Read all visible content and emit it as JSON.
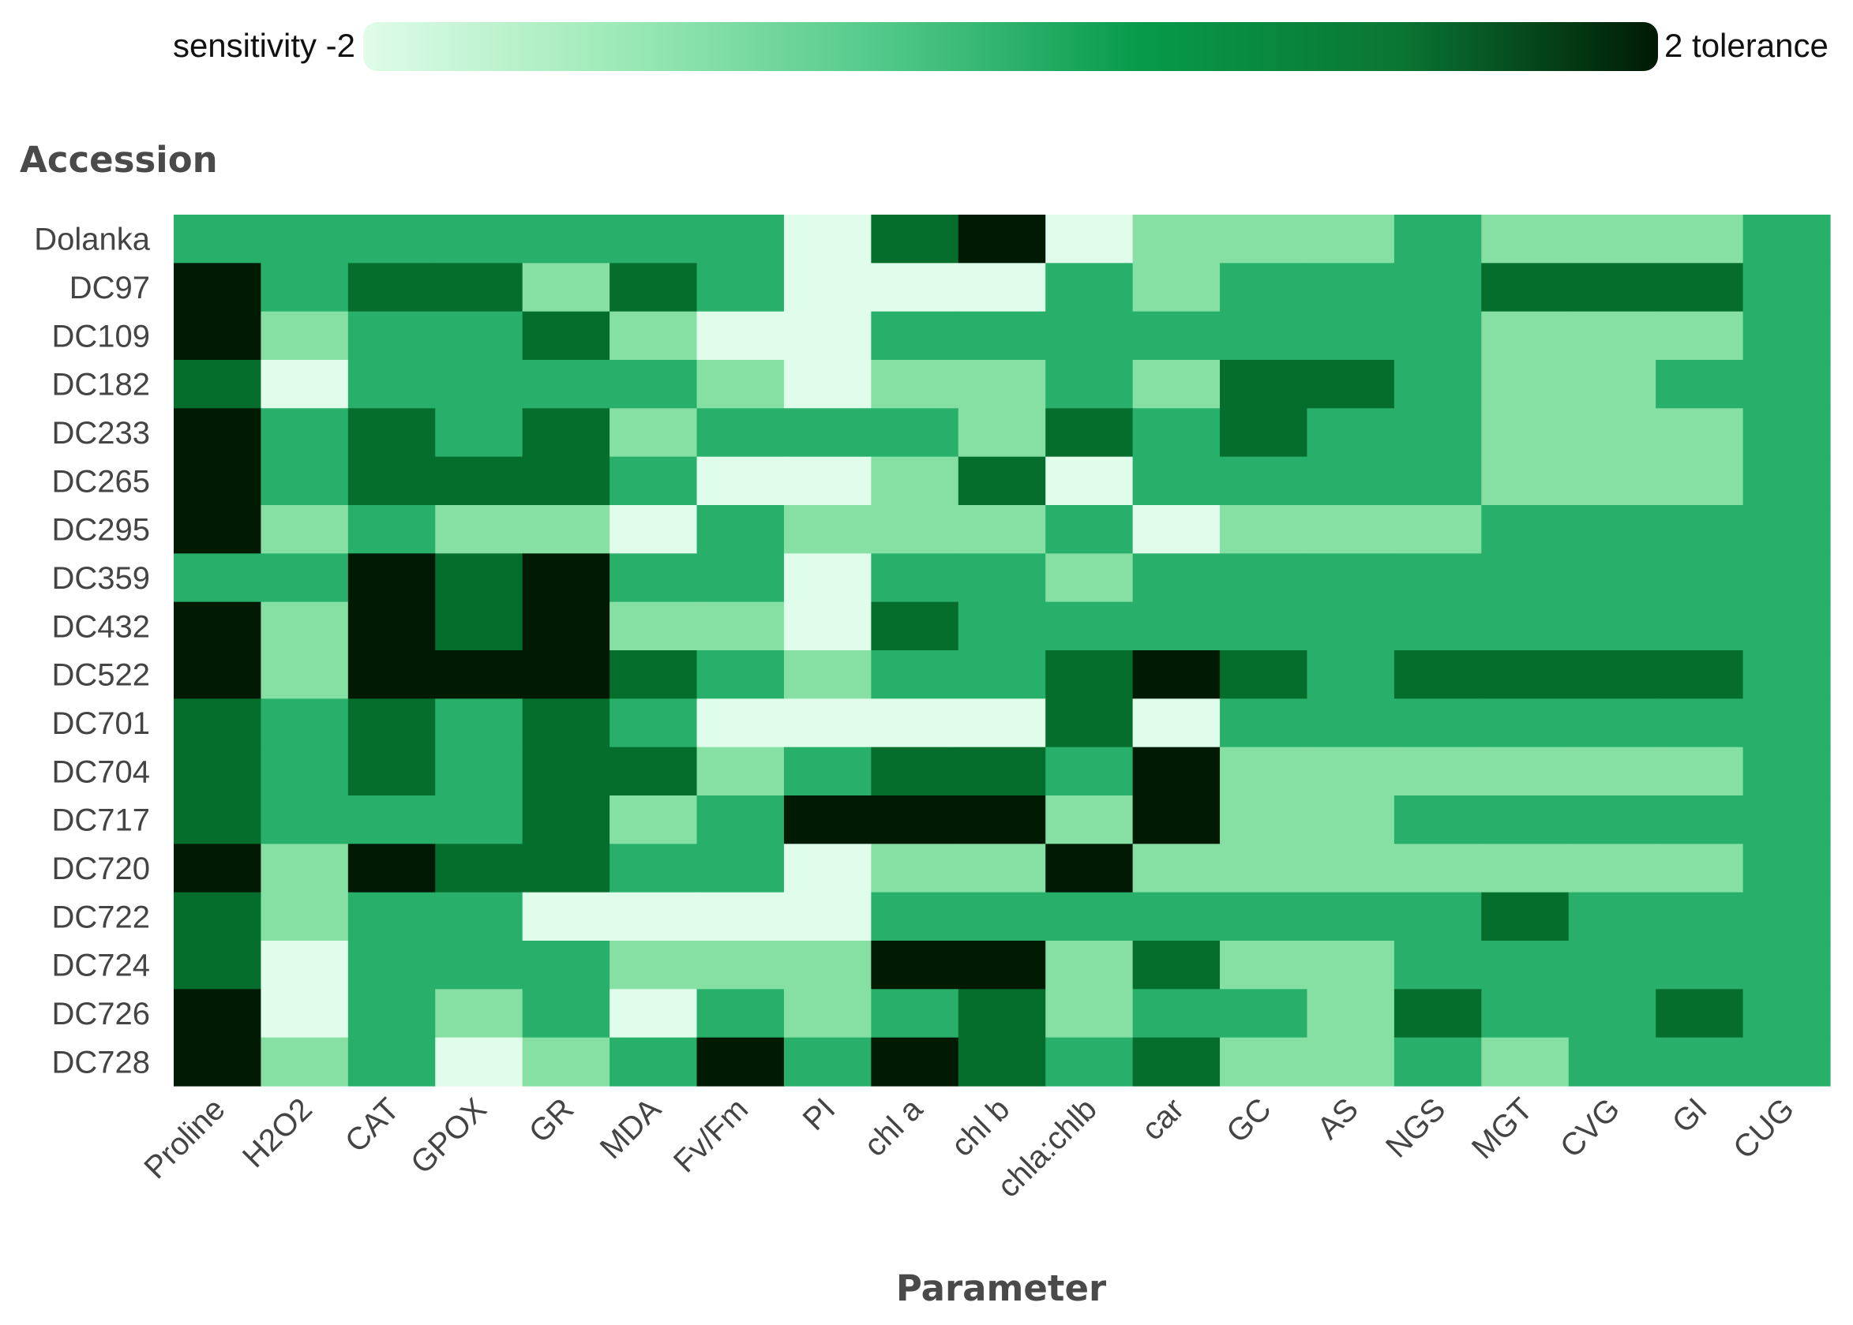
{
  "chart_data": {
    "type": "heatmap",
    "xlabel": "Parameter",
    "ylabel": "Accession",
    "x": [
      "Proline",
      "H2O2",
      "CAT",
      "GPOX",
      "GR",
      "MDA",
      "Fv/Fm",
      "PI",
      "chl a",
      "chl b",
      "chla:chlb",
      "car",
      "GC",
      "AS",
      "NGS",
      "MGT",
      "CVG",
      "GI",
      "CUG"
    ],
    "y": [
      "Dolanka",
      "DC97",
      "DC109",
      "DC182",
      "DC233",
      "DC265",
      "DC295",
      "DC359",
      "DC432",
      "DC522",
      "DC701",
      "DC704",
      "DC717",
      "DC720",
      "DC722",
      "DC724",
      "DC726",
      "DC728"
    ],
    "z": [
      [
        0,
        0,
        0,
        0,
        0,
        0,
        0,
        -2,
        1,
        2,
        -2,
        -1,
        -1,
        -1,
        0,
        -1,
        -1,
        -1,
        0
      ],
      [
        2,
        0,
        1,
        1,
        -1,
        1,
        0,
        -2,
        -2,
        -2,
        0,
        -1,
        0,
        0,
        0,
        1,
        1,
        1,
        0
      ],
      [
        2,
        -1,
        0,
        0,
        1,
        -1,
        -2,
        -2,
        0,
        0,
        0,
        0,
        0,
        0,
        0,
        -1,
        -1,
        -1,
        0
      ],
      [
        1,
        -2,
        0,
        0,
        0,
        0,
        -1,
        -2,
        -1,
        -1,
        0,
        -1,
        1,
        1,
        0,
        -1,
        -1,
        0,
        0
      ],
      [
        2,
        0,
        1,
        0,
        1,
        -1,
        0,
        0,
        0,
        -1,
        1,
        0,
        1,
        0,
        0,
        -1,
        -1,
        -1,
        0
      ],
      [
        2,
        0,
        1,
        1,
        1,
        0,
        -2,
        -2,
        -1,
        1,
        -2,
        0,
        0,
        0,
        0,
        -1,
        -1,
        -1,
        0
      ],
      [
        2,
        -1,
        0,
        -1,
        -1,
        -2,
        0,
        -1,
        -1,
        -1,
        0,
        -2,
        -1,
        -1,
        -1,
        0,
        0,
        0,
        0
      ],
      [
        0,
        0,
        2,
        1,
        2,
        0,
        0,
        -2,
        0,
        0,
        -1,
        0,
        0,
        0,
        0,
        0,
        0,
        0,
        0
      ],
      [
        2,
        -1,
        2,
        1,
        2,
        -1,
        -1,
        -2,
        1,
        0,
        0,
        0,
        0,
        0,
        0,
        0,
        0,
        0,
        0
      ],
      [
        2,
        -1,
        2,
        2,
        2,
        1,
        0,
        -1,
        0,
        0,
        1,
        2,
        1,
        0,
        1,
        1,
        1,
        1,
        0
      ],
      [
        1,
        0,
        1,
        0,
        1,
        0,
        -2,
        -2,
        -2,
        -2,
        1,
        -2,
        0,
        0,
        0,
        0,
        0,
        0,
        0
      ],
      [
        1,
        0,
        1,
        0,
        1,
        1,
        -1,
        0,
        1,
        1,
        0,
        2,
        -1,
        -1,
        -1,
        -1,
        -1,
        -1,
        0
      ],
      [
        1,
        0,
        0,
        0,
        1,
        -1,
        0,
        2,
        2,
        2,
        -1,
        2,
        -1,
        -1,
        0,
        0,
        0,
        0,
        0
      ],
      [
        2,
        -1,
        2,
        1,
        1,
        0,
        0,
        -2,
        -1,
        -1,
        2,
        -1,
        -1,
        -1,
        -1,
        -1,
        -1,
        -1,
        0
      ],
      [
        1,
        -1,
        0,
        0,
        -2,
        -2,
        -2,
        -2,
        0,
        0,
        0,
        0,
        0,
        0,
        0,
        1,
        0,
        0,
        0
      ],
      [
        1,
        -2,
        0,
        0,
        0,
        -1,
        -1,
        -1,
        2,
        2,
        -1,
        1,
        -1,
        -1,
        0,
        0,
        0,
        0,
        0
      ],
      [
        2,
        -2,
        0,
        -1,
        0,
        -2,
        0,
        -1,
        0,
        1,
        -1,
        0,
        0,
        -1,
        1,
        0,
        0,
        1,
        0
      ],
      [
        2,
        -1,
        0,
        -2,
        -1,
        0,
        2,
        0,
        2,
        1,
        0,
        1,
        -1,
        -1,
        0,
        -1,
        0,
        0,
        0
      ]
    ],
    "zlim": [
      -2,
      2
    ],
    "colors": {
      "-2": "#e0fcea",
      "-1": "#86e0a4",
      "0": "#28b06a",
      "1": "#066e2c",
      "2": "#001a04"
    },
    "colorscale": [
      "#e0fcea",
      "#9ce9b6",
      "#52c98a",
      "#079a4b",
      "#0a7634",
      "#001a04"
    ],
    "legend": {
      "left_label": "sensitivity -2",
      "right_label": "2 tolerance",
      "placement": "top"
    }
  }
}
